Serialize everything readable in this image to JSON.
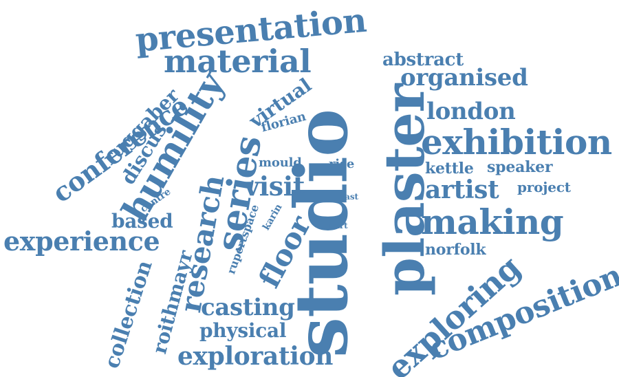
{
  "cloud": {
    "text_color": "#4a7fb0",
    "background": "#ffffff",
    "words": [
      "studio",
      "plaster",
      "presentation",
      "material",
      "humility",
      "series",
      "exhibition",
      "making",
      "composition",
      "exploring",
      "research",
      "floor",
      "experience",
      "conference",
      "exploration",
      "casting",
      "artist",
      "visit",
      "organised",
      "london",
      "abstract",
      "collection",
      "roithmayr",
      "physical",
      "ruggaber",
      "discus",
      "virtual",
      "based",
      "florian",
      "speaker",
      "kettle",
      "project",
      "norfolk",
      "mould",
      "rise",
      "centre",
      "rupertspace",
      "karin",
      "cast",
      "part"
    ]
  }
}
